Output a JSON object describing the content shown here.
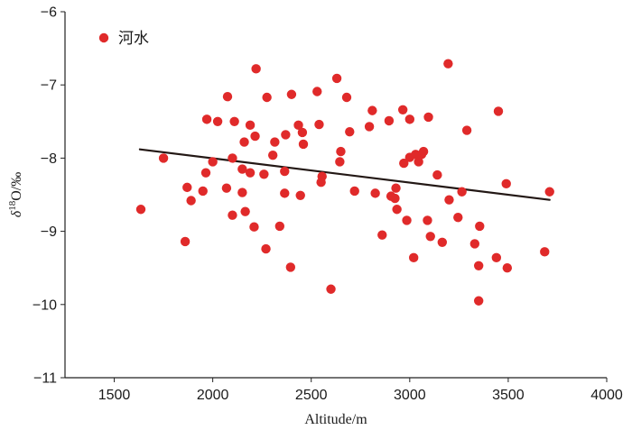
{
  "chart_data": {
    "type": "scatter",
    "title": "",
    "xlabel": "Altitude/m",
    "ylabel_parts": {
      "symbol": "δ",
      "sup": "18",
      "rest": "O/‰"
    },
    "xlim": [
      1250,
      4000
    ],
    "ylim": [
      -11,
      -6
    ],
    "xticks": [
      1500,
      2000,
      2500,
      3000,
      3500,
      4000
    ],
    "xtick_labels": [
      "1500",
      "2000",
      "2500",
      "3000",
      "3500",
      "4000"
    ],
    "yticks": [
      -11,
      -10,
      -9,
      -8,
      -7,
      -6
    ],
    "ytick_labels": [
      "−11",
      "−10",
      "−9",
      "−8",
      "−7",
      "−6"
    ],
    "grid": false,
    "legend_position": "top-left",
    "series": [
      {
        "name": "河水",
        "color": "#e02a2a",
        "points": [
          [
            1635,
            -8.7
          ],
          [
            1750,
            -8.0
          ],
          [
            1860,
            -9.14
          ],
          [
            1870,
            -8.4
          ],
          [
            1890,
            -8.58
          ],
          [
            1950,
            -8.45
          ],
          [
            1965,
            -8.2
          ],
          [
            1970,
            -7.47
          ],
          [
            2000,
            -8.05
          ],
          [
            2025,
            -7.5
          ],
          [
            2070,
            -8.41
          ],
          [
            2075,
            -7.16
          ],
          [
            2100,
            -8.0
          ],
          [
            2100,
            -8.78
          ],
          [
            2110,
            -7.5
          ],
          [
            2150,
            -8.47
          ],
          [
            2150,
            -8.15
          ],
          [
            2160,
            -7.78
          ],
          [
            2165,
            -8.73
          ],
          [
            2190,
            -7.55
          ],
          [
            2190,
            -8.2
          ],
          [
            2210,
            -8.94
          ],
          [
            2215,
            -7.7
          ],
          [
            2220,
            -6.78
          ],
          [
            2260,
            -8.22
          ],
          [
            2270,
            -9.24
          ],
          [
            2275,
            -7.17
          ],
          [
            2305,
            -7.96
          ],
          [
            2315,
            -7.78
          ],
          [
            2340,
            -8.93
          ],
          [
            2365,
            -8.18
          ],
          [
            2365,
            -8.48
          ],
          [
            2370,
            -7.68
          ],
          [
            2395,
            -9.49
          ],
          [
            2400,
            -7.13
          ],
          [
            2435,
            -7.55
          ],
          [
            2445,
            -8.51
          ],
          [
            2455,
            -7.65
          ],
          [
            2460,
            -7.81
          ],
          [
            2530,
            -7.09
          ],
          [
            2540,
            -7.54
          ],
          [
            2550,
            -8.33
          ],
          [
            2555,
            -8.25
          ],
          [
            2600,
            -9.79
          ],
          [
            2630,
            -6.91
          ],
          [
            2645,
            -8.05
          ],
          [
            2650,
            -7.91
          ],
          [
            2680,
            -7.17
          ],
          [
            2695,
            -7.64
          ],
          [
            2720,
            -8.45
          ],
          [
            2795,
            -7.57
          ],
          [
            2810,
            -7.35
          ],
          [
            2825,
            -8.48
          ],
          [
            2860,
            -9.05
          ],
          [
            2895,
            -7.49
          ],
          [
            2905,
            -8.52
          ],
          [
            2925,
            -8.55
          ],
          [
            2930,
            -8.41
          ],
          [
            2935,
            -8.7
          ],
          [
            2965,
            -7.34
          ],
          [
            2970,
            -8.07
          ],
          [
            2985,
            -8.85
          ],
          [
            3000,
            -7.47
          ],
          [
            3000,
            -7.99
          ],
          [
            3020,
            -9.36
          ],
          [
            3030,
            -7.95
          ],
          [
            3045,
            -8.05
          ],
          [
            3060,
            -7.95
          ],
          [
            3070,
            -7.91
          ],
          [
            3090,
            -8.85
          ],
          [
            3095,
            -7.44
          ],
          [
            3105,
            -9.07
          ],
          [
            3140,
            -8.23
          ],
          [
            3165,
            -9.15
          ],
          [
            3195,
            -6.71
          ],
          [
            3200,
            -8.57
          ],
          [
            3245,
            -8.81
          ],
          [
            3265,
            -8.46
          ],
          [
            3290,
            -7.62
          ],
          [
            3330,
            -9.17
          ],
          [
            3350,
            -9.47
          ],
          [
            3350,
            -9.95
          ],
          [
            3355,
            -8.93
          ],
          [
            3440,
            -9.36
          ],
          [
            3450,
            -7.36
          ],
          [
            3490,
            -8.35
          ],
          [
            3495,
            -9.5
          ],
          [
            3685,
            -9.28
          ],
          [
            3710,
            -8.46
          ]
        ]
      }
    ],
    "trendline": {
      "x": [
        1630,
        3710
      ],
      "y": [
        -7.88,
        -8.57
      ],
      "color": "#231815"
    }
  }
}
